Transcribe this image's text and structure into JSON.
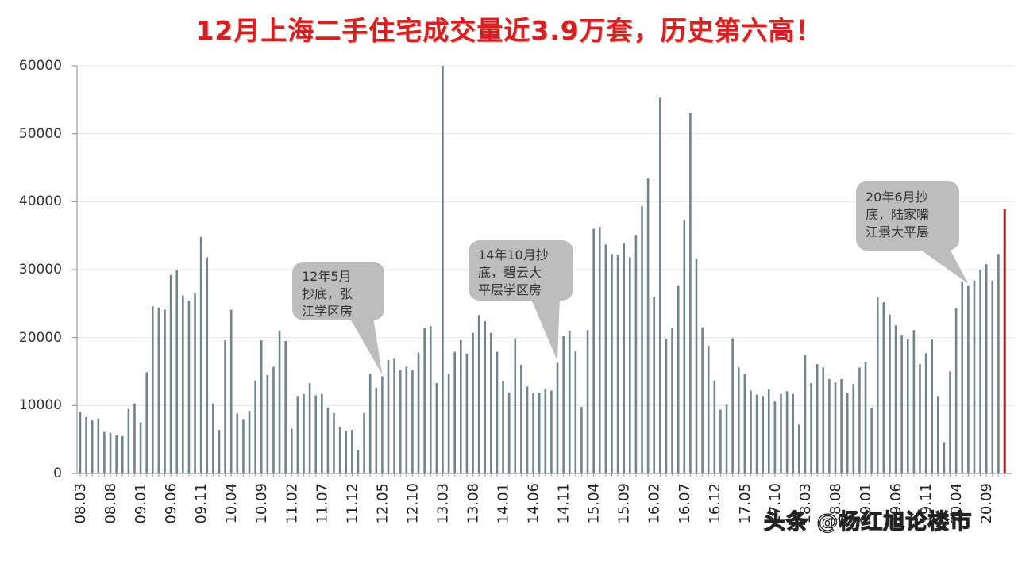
{
  "title": "12月上海二手住宅成交量近3.9万套，历史第六高！",
  "watermark": "头条 @杨红旭论楼市",
  "colors": {
    "title": "#d42020",
    "bar": "#6f858c",
    "highlight_bar": "#b02424",
    "callout": "#bdbdbd",
    "grid": "#e6e6e6",
    "axis": "#888888"
  },
  "callouts": [
    {
      "text_lines": [
        "12年5月",
        "抄底，张",
        "江学区房"
      ],
      "points_to": "12.05"
    },
    {
      "text_lines": [
        "14年10月抄",
        "底，碧云大",
        "平层学区房"
      ],
      "points_to": "14.10"
    },
    {
      "text_lines": [
        "20年6月抄",
        "底，陆家嘴",
        "江景大平层"
      ],
      "points_to": "20.06"
    }
  ],
  "chart_data": {
    "type": "bar",
    "title": "12月上海二手住宅成交量近3.9万套，历史第六高！",
    "xlabel": "",
    "ylabel": "",
    "ylim": [
      0,
      60000
    ],
    "yticks": [
      0,
      10000,
      20000,
      30000,
      40000,
      50000,
      60000
    ],
    "grid": true,
    "legend": null,
    "xtick_labels": [
      "08.03",
      "08.08",
      "09.01",
      "09.06",
      "09.11",
      "10.04",
      "10.09",
      "11.02",
      "11.07",
      "11.12",
      "12.05",
      "12.10",
      "13.03",
      "13.08",
      "14.01",
      "14.06",
      "14.11",
      "15.04",
      "15.09",
      "16.02",
      "16.07",
      "16.12",
      "17.05",
      "17.10",
      "18.03",
      "18.08",
      "19.01",
      "19.06",
      "19.11",
      "20.04",
      "20.09"
    ],
    "start": "2008.03",
    "end": "2020.12",
    "highlight": {
      "category": "20.12",
      "value": 38900,
      "color": "#b02424"
    },
    "values": [
      9000,
      8300,
      7800,
      8100,
      6100,
      6000,
      5600,
      5500,
      9500,
      10300,
      7500,
      14900,
      24600,
      24400,
      24100,
      29200,
      29900,
      26200,
      25400,
      26500,
      34800,
      31800,
      10300,
      6400,
      19600,
      24100,
      8800,
      8000,
      9200,
      13700,
      19600,
      14500,
      15700,
      21000,
      19500,
      6600,
      11400,
      11700,
      13300,
      11500,
      11700,
      9700,
      8900,
      6800,
      6200,
      6400,
      3500,
      8900,
      14700,
      12600,
      14300,
      16700,
      16900,
      15200,
      15700,
      15200,
      17800,
      21400,
      21700,
      13300,
      60000,
      14600,
      17900,
      19600,
      17600,
      20700,
      23300,
      22400,
      20700,
      17900,
      13600,
      11900,
      19900,
      16000,
      12800,
      11800,
      11800,
      12500,
      12200,
      16300,
      20200,
      21000,
      18000,
      9800,
      21100,
      36000,
      36300,
      33700,
      32300,
      32100,
      33900,
      31800,
      35100,
      39300,
      43400,
      26000,
      55400,
      19800,
      21400,
      27700,
      37300,
      53000,
      31600,
      21500,
      18800,
      13700,
      9400,
      10100,
      19900,
      15600,
      14600,
      12200,
      11600,
      11400,
      12400,
      10600,
      11700,
      12100,
      11700,
      7200,
      17400,
      13300,
      16100,
      15600,
      13900,
      13400,
      13900,
      11800,
      13200,
      15600,
      16400,
      9700,
      25900,
      25200,
      23400,
      21800,
      20300,
      19800,
      21100,
      16100,
      17700,
      19700,
      11400,
      4600,
      15000,
      24300,
      28300,
      27700,
      28400,
      30000,
      30800,
      28400,
      32300,
      38900
    ]
  }
}
